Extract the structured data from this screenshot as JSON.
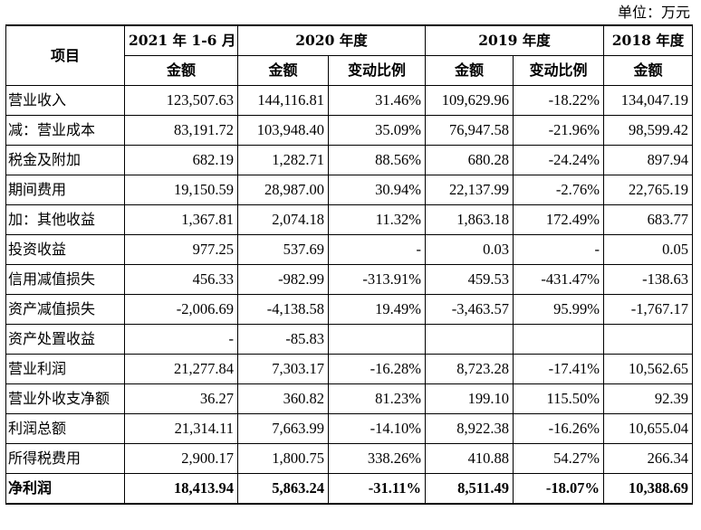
{
  "unit_note": "单位：万元",
  "header": {
    "item": "项目",
    "periods": [
      "2021 年 1-6 月",
      "2020 年度",
      "2019 年度",
      "2018 年度"
    ],
    "amount": "金额",
    "change": "变动比例"
  },
  "rows": [
    {
      "label": "营业收入",
      "v": [
        "123,507.63",
        "144,116.81",
        "31.46%",
        "109,629.96",
        "-18.22%",
        "134,047.19"
      ]
    },
    {
      "label": "减：营业成本",
      "v": [
        "83,191.72",
        "103,948.40",
        "35.09%",
        "76,947.58",
        "-21.96%",
        "98,599.42"
      ]
    },
    {
      "label": "税金及附加",
      "v": [
        "682.19",
        "1,282.71",
        "88.56%",
        "680.28",
        "-24.24%",
        "897.94"
      ]
    },
    {
      "label": "期间费用",
      "v": [
        "19,150.59",
        "28,987.00",
        "30.94%",
        "22,137.99",
        "-2.76%",
        "22,765.19"
      ]
    },
    {
      "label": "加：其他收益",
      "v": [
        "1,367.81",
        "2,074.18",
        "11.32%",
        "1,863.18",
        "172.49%",
        "683.77"
      ]
    },
    {
      "label": "投资收益",
      "v": [
        "977.25",
        "537.69",
        "-",
        "0.03",
        "-",
        "0.05"
      ]
    },
    {
      "label": "信用减值损失",
      "v": [
        "456.33",
        "-982.99",
        "-313.91%",
        "459.53",
        "-431.47%",
        "-138.63"
      ]
    },
    {
      "label": "资产减值损失",
      "v": [
        "-2,006.69",
        "-4,138.58",
        "19.49%",
        "-3,463.57",
        "95.99%",
        "-1,767.17"
      ]
    },
    {
      "label": "资产处置收益",
      "v": [
        "-",
        "-85.83",
        "",
        "",
        "",
        ""
      ]
    },
    {
      "label": "营业利润",
      "v": [
        "21,277.84",
        "7,303.17",
        "-16.28%",
        "8,723.28",
        "-17.41%",
        "10,562.65"
      ]
    },
    {
      "label": "营业外收支净额",
      "v": [
        "36.27",
        "360.82",
        "81.23%",
        "199.10",
        "115.50%",
        "92.39"
      ]
    },
    {
      "label": "利润总额",
      "v": [
        "21,314.11",
        "7,663.99",
        "-14.10%",
        "8,922.38",
        "-16.26%",
        "10,655.04"
      ]
    },
    {
      "label": "所得税费用",
      "v": [
        "2,900.17",
        "1,800.75",
        "338.26%",
        "410.88",
        "54.27%",
        "266.34"
      ]
    },
    {
      "label": "净利润",
      "v": [
        "18,413.94",
        "5,863.24",
        "-31.11%",
        "8,511.49",
        "-18.07%",
        "10,388.69"
      ]
    }
  ]
}
